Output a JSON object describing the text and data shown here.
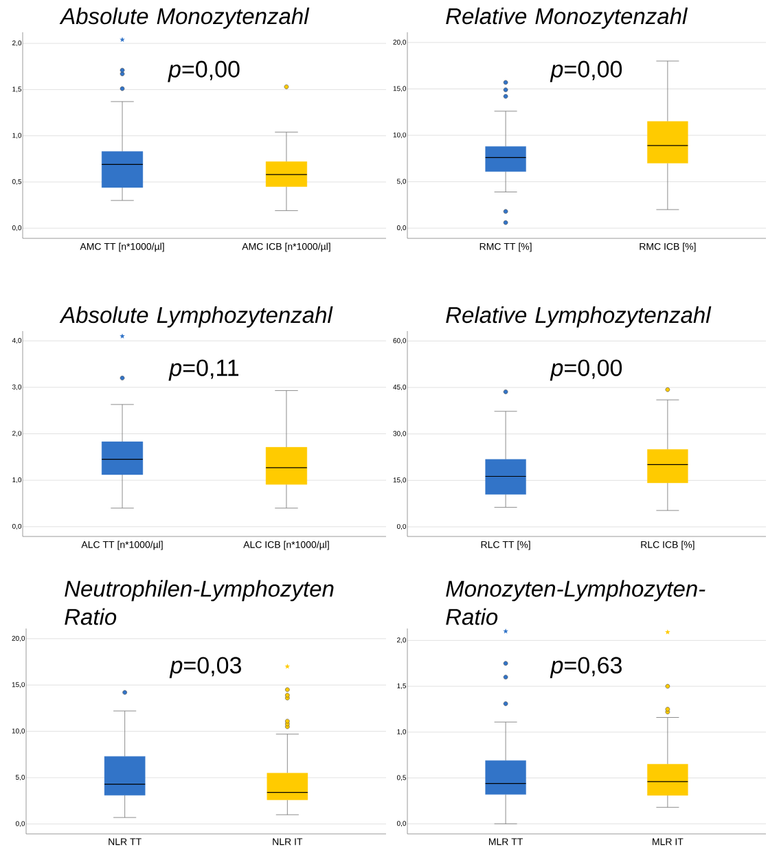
{
  "chart_data": [
    {
      "type": "box",
      "title": "Absolute Monozytenzahl",
      "categories": [
        "AMC TT [n*1000/µl]",
        "AMC ICB [n*1000/µl]"
      ],
      "colors": [
        "#3274c8",
        "#ffcb00"
      ],
      "boxes": [
        {
          "low": 0.3,
          "q1": 0.44,
          "median": 0.69,
          "q3": 0.83,
          "high": 1.37,
          "outliers": [
            1.51,
            1.67,
            1.71
          ]
        },
        {
          "low": 0.19,
          "q1": 0.45,
          "median": 0.58,
          "q3": 0.72,
          "high": 1.04,
          "outliers": [
            1.53
          ]
        }
      ],
      "series": [
        {
          "type": "scatter",
          "marker": "star",
          "color": "#3274c8",
          "values": [
            2.04,
            null
          ]
        }
      ],
      "annotations": [
        "*p*=0,00"
      ],
      "ylim": [
        -0.11,
        2.12
      ],
      "yticks": [
        {
          "value": 0,
          "label": "0,0"
        },
        {
          "value": 0.5,
          "label": "0,5"
        },
        {
          "value": 1,
          "label": "1,0"
        },
        {
          "value": 1.5,
          "label": "1,5"
        },
        {
          "value": 2,
          "label": "2,0"
        }
      ],
      "grid": "y"
    },
    {
      "type": "box",
      "title": "Relative Monozytenzahl",
      "categories": [
        "RMC TT [%]",
        "RMC ICB [%]"
      ],
      "colors": [
        "#3274c8",
        "#ffcb00"
      ],
      "boxes": [
        {
          "low": 3.9,
          "q1": 6.1,
          "median": 7.6,
          "q3": 8.8,
          "high": 12.6,
          "outliers": [
            0.6,
            1.8,
            14.2,
            14.9,
            15.7
          ]
        },
        {
          "low": 2.0,
          "q1": 7.0,
          "median": 8.9,
          "q3": 11.5,
          "high": 18.0
        }
      ],
      "annotations": [
        "*p*=0,00"
      ],
      "ylim": [
        -1.1,
        21.1
      ],
      "yticks": [
        {
          "value": 0,
          "label": "0,0"
        },
        {
          "value": 5,
          "label": "5,0"
        },
        {
          "value": 10,
          "label": "10,0"
        },
        {
          "value": 15,
          "label": "15,0"
        },
        {
          "value": 20,
          "label": "20,0"
        }
      ],
      "grid": "y"
    },
    {
      "type": "box",
      "title": "Absolute Lymphozytenzahl",
      "categories": [
        "ALC TT [n*1000/µl]",
        "ALC ICB [n*1000/µl]"
      ],
      "colors": [
        "#3274c8",
        "#ffcb00"
      ],
      "boxes": [
        {
          "low": 0.4,
          "q1": 1.12,
          "median": 1.45,
          "q3": 1.83,
          "high": 2.63,
          "outliers": [
            3.2
          ]
        },
        {
          "low": 0.4,
          "q1": 0.91,
          "median": 1.27,
          "q3": 1.71,
          "high": 2.93
        }
      ],
      "series": [
        {
          "type": "scatter",
          "marker": "star",
          "color": "#3274c8",
          "values": [
            4.1,
            null
          ]
        }
      ],
      "annotations": [
        "*p*=0,11"
      ],
      "ylim": [
        -0.21,
        4.21
      ],
      "yticks": [
        {
          "value": 0,
          "label": "0,0"
        },
        {
          "value": 1,
          "label": "1,0"
        },
        {
          "value": 2,
          "label": "2,0"
        },
        {
          "value": 3,
          "label": "3,0"
        },
        {
          "value": 4,
          "label": "4,0"
        }
      ],
      "grid": "y"
    },
    {
      "type": "box",
      "title": "Relative Lymphozytenzahl",
      "categories": [
        "RLC TT [%]",
        "RLC ICB [%]"
      ],
      "colors": [
        "#3274c8",
        "#ffcb00"
      ],
      "boxes": [
        {
          "low": 6.3,
          "q1": 10.5,
          "median": 16.3,
          "q3": 21.8,
          "high": 37.3,
          "outliers": [
            43.6
          ]
        },
        {
          "low": 5.3,
          "q1": 14.2,
          "median": 20.1,
          "q3": 25.0,
          "high": 41.0,
          "outliers": [
            44.3
          ]
        }
      ],
      "annotations": [
        "*p*=0,00"
      ],
      "ylim": [
        -3.1,
        63.2
      ],
      "yticks": [
        {
          "value": 0,
          "label": "0,0"
        },
        {
          "value": 15,
          "label": "15,0"
        },
        {
          "value": 30,
          "label": "30,0"
        },
        {
          "value": 45,
          "label": "45,0"
        },
        {
          "value": 60,
          "label": "60,0"
        }
      ],
      "grid": "y"
    },
    {
      "type": "box",
      "title": "Neutrophilen-Lymphozyten Ratio",
      "categories": [
        "NLR TT",
        "NLR IT"
      ],
      "colors": [
        "#3274c8",
        "#ffcb00"
      ],
      "boxes": [
        {
          "low": 0.7,
          "q1": 3.1,
          "median": 4.3,
          "q3": 7.3,
          "high": 12.2,
          "outliers": [
            14.2
          ]
        },
        {
          "low": 1.0,
          "q1": 2.6,
          "median": 3.4,
          "q3": 5.5,
          "high": 9.7,
          "outliers": [
            10.5,
            10.8,
            11.1,
            13.6,
            13.9,
            14.5
          ]
        }
      ],
      "series": [
        {
          "type": "scatter",
          "marker": "star",
          "color": "#ffcb00",
          "values": [
            null,
            17.0
          ]
        }
      ],
      "annotations": [
        "*p*=0,03"
      ],
      "ylim": [
        -1.07,
        21.1
      ],
      "yticks": [
        {
          "value": 0,
          "label": "0,0"
        },
        {
          "value": 5,
          "label": "5,0"
        },
        {
          "value": 10,
          "label": "10,0"
        },
        {
          "value": 15,
          "label": "15,0"
        },
        {
          "value": 20,
          "label": "20,0"
        }
      ],
      "grid": "y"
    },
    {
      "type": "box",
      "title": "Monozyten-Lymphozyten-Ratio",
      "categories": [
        "MLR TT",
        "MLR IT"
      ],
      "colors": [
        "#3274c8",
        "#ffcb00"
      ],
      "boxes": [
        {
          "low": 0.0,
          "q1": 0.32,
          "median": 0.44,
          "q3": 0.69,
          "high": 1.11,
          "outliers": [
            1.31,
            1.6,
            1.75
          ]
        },
        {
          "low": 0.18,
          "q1": 0.31,
          "median": 0.46,
          "q3": 0.65,
          "high": 1.16,
          "outliers": [
            1.22,
            1.25,
            1.5
          ]
        }
      ],
      "series": [
        {
          "type": "scatter",
          "marker": "star",
          "color": "#3274c8",
          "values": [
            2.1,
            null
          ]
        },
        {
          "type": "scatter",
          "marker": "star",
          "color": "#ffcb00",
          "values": [
            null,
            2.09
          ]
        }
      ],
      "annotations": [
        "*p*=0,63"
      ],
      "ylim": [
        -0.11,
        2.13
      ],
      "yticks": [
        {
          "value": 0,
          "label": "0,0"
        },
        {
          "value": 0.5,
          "label": "0,5"
        },
        {
          "value": 1,
          "label": "1,0"
        },
        {
          "value": 1.5,
          "label": "1,5"
        },
        {
          "value": 2,
          "label": "2,0"
        }
      ],
      "grid": "y"
    }
  ]
}
